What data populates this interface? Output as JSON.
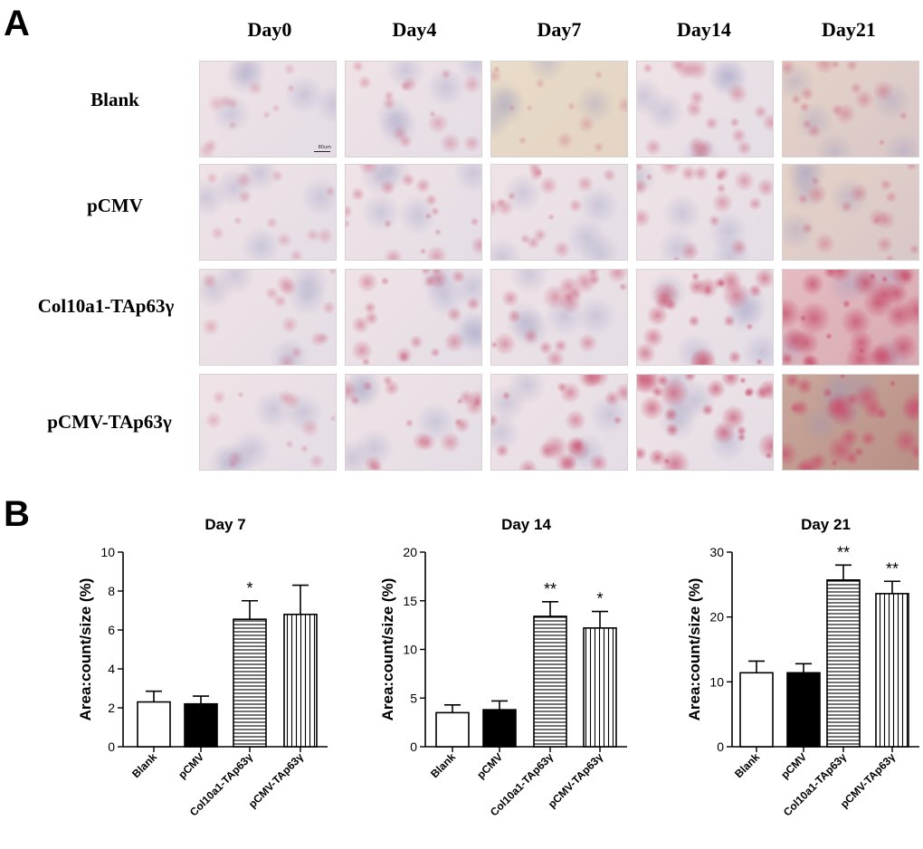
{
  "panel_a": {
    "letter": "A",
    "columns": [
      "Day0",
      "Day4",
      "Day7",
      "Day14",
      "Day21"
    ],
    "rows": [
      "Blank",
      "pCMV",
      "Col10a1-TAp63γ",
      "pCMV-TAp63γ"
    ],
    "scale_bar_label": "80um",
    "stain_level": [
      [
        0.05,
        0.2,
        0.1,
        0.3,
        0.25
      ],
      [
        0.1,
        0.3,
        0.25,
        0.35,
        0.25
      ],
      [
        0.15,
        0.4,
        0.4,
        0.6,
        0.9
      ],
      [
        0.1,
        0.35,
        0.5,
        0.75,
        0.85
      ]
    ]
  },
  "panel_b": {
    "letter": "B"
  },
  "colors": {
    "bar_outline": "#000000",
    "pcmv_fill": "#000000",
    "blank_fill": "#ffffff",
    "tissue": "#efe3e6",
    "stain": "#c8526f"
  },
  "chart_data": [
    {
      "type": "bar",
      "title": "Day 7",
      "ylabel": "Area:count/size (%)",
      "categories": [
        "Blank",
        "pCMV",
        "Col10a1-TAp63γ",
        "pCMV-TAp63γ"
      ],
      "values": [
        2.3,
        2.2,
        6.55,
        6.8
      ],
      "errors": [
        0.55,
        0.4,
        0.95,
        1.5
      ],
      "significance": [
        "",
        "",
        "*",
        ""
      ],
      "patterns": [
        "open",
        "solid",
        "horizontal",
        "vertical"
      ],
      "ylim": [
        0,
        10
      ],
      "yticks": [
        0,
        2,
        4,
        6,
        8,
        10
      ]
    },
    {
      "type": "bar",
      "title": "Day 14",
      "ylabel": "Area:count/size (%)",
      "categories": [
        "Blank",
        "pCMV",
        "Col10a1-TAp63γ",
        "pCMV-TAp63γ"
      ],
      "values": [
        3.5,
        3.8,
        13.4,
        12.2
      ],
      "errors": [
        0.8,
        0.9,
        1.5,
        1.7
      ],
      "significance": [
        "",
        "",
        "**",
        "*"
      ],
      "patterns": [
        "open",
        "solid",
        "horizontal",
        "vertical"
      ],
      "ylim": [
        0,
        20
      ],
      "yticks": [
        0,
        5,
        10,
        15,
        20
      ]
    },
    {
      "type": "bar",
      "title": "Day 21",
      "ylabel": "Area:count/size (%)",
      "categories": [
        "Blank",
        "pCMV",
        "Col10a1-TAp63γ",
        "pCMV-TAp63γ"
      ],
      "values": [
        11.4,
        11.4,
        25.7,
        23.6
      ],
      "errors": [
        1.8,
        1.4,
        2.3,
        1.9
      ],
      "significance": [
        "",
        "",
        "**",
        "**"
      ],
      "patterns": [
        "open",
        "solid",
        "horizontal",
        "vertical"
      ],
      "ylim": [
        0,
        30
      ],
      "yticks": [
        0,
        10,
        20,
        30
      ]
    }
  ]
}
